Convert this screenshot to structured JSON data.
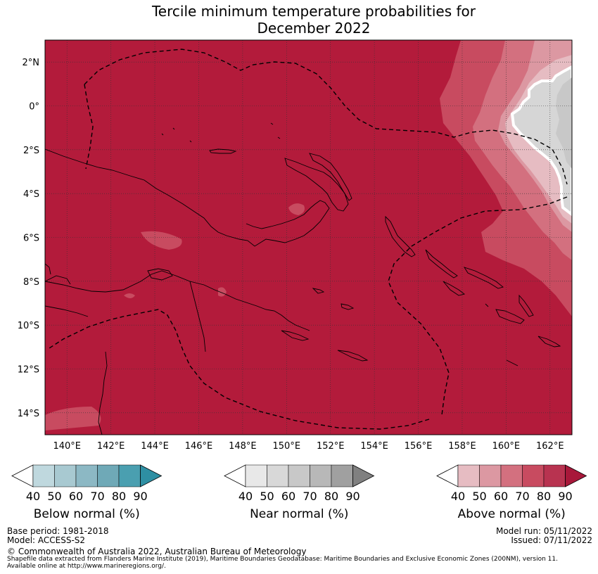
{
  "title": {
    "line1": "Tercile minimum temperature probabilities for",
    "line2": "December 2022"
  },
  "map": {
    "lat_labels": [
      "2°N",
      "0°",
      "2°S",
      "4°S",
      "6°S",
      "8°S",
      "10°S",
      "12°S",
      "14°S"
    ],
    "lon_labels": [
      "140°E",
      "142°E",
      "144°E",
      "146°E",
      "148°E",
      "150°E",
      "152°E",
      "154°E",
      "156°E",
      "158°E",
      "160°E",
      "162°E"
    ],
    "lon_range": [
      139,
      163
    ],
    "lat_range": [
      -15,
      3
    ],
    "colors": {
      "above_90": "#b31b3b",
      "above_80": "#c84b60",
      "above_70": "#d3707f",
      "above_60": "#dc98a2",
      "above_50": "#e6bcc2",
      "near_40": "#d6d6d6",
      "near_50": "#c8c8c8"
    }
  },
  "legends": [
    {
      "title": "Below normal (%)",
      "ticks": [
        "40",
        "50",
        "60",
        "70",
        "80",
        "90"
      ],
      "colors": [
        "#bfd8de",
        "#a8c9d1",
        "#8cb8c4",
        "#6fa9b7",
        "#4a9fb0",
        "#2e8fa3"
      ]
    },
    {
      "title": "Near normal (%)",
      "ticks": [
        "40",
        "50",
        "60",
        "70",
        "80",
        "90"
      ],
      "colors": [
        "#e8e8e8",
        "#d8d8d8",
        "#c8c8c8",
        "#b8b8b8",
        "#a0a0a0",
        "#808080"
      ]
    },
    {
      "title": "Above normal (%)",
      "ticks": [
        "40",
        "50",
        "60",
        "70",
        "80",
        "90"
      ],
      "colors": [
        "#e6bcc2",
        "#dc98a2",
        "#d3707f",
        "#c84b60",
        "#b83350",
        "#a8183a"
      ]
    }
  ],
  "footer": {
    "base_period": "Base period: 1981-2018",
    "model": "Model: ACCESS-S2",
    "model_run": "Model run: 05/11/2022",
    "issued": "Issued: 07/11/2022",
    "copyright": "© Commonwealth of Australia 2022, Australian Bureau of Meteorology",
    "shapefile1": "Shapefile data extracted from Flanders Marine Institute (2019), Maritime Boundaries Geodatabase: Maritime Boundaries and Exclusive Economic Zones (200NM), version 11.",
    "shapefile2": "Available online at http://www.marineregions.org/."
  }
}
